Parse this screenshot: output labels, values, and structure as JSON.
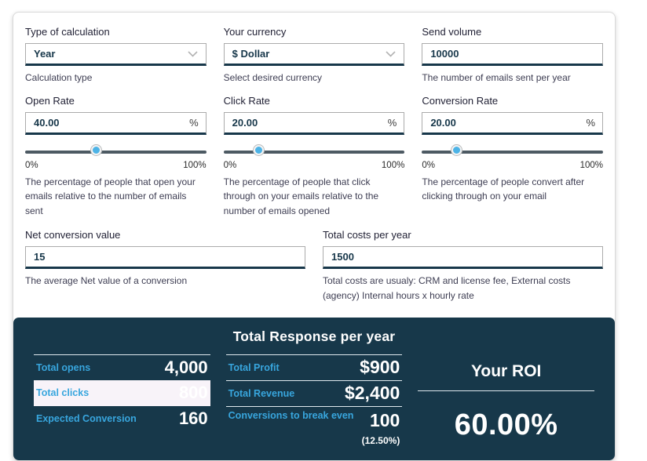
{
  "colors": {
    "panel_bg": "#17384a",
    "accent_cyan": "#38a6de",
    "slider_thumb": "#4db3e6",
    "highlight_row_bg": "#f8f3f9",
    "input_border_bottom": "#17374a"
  },
  "form": {
    "fields": [
      {
        "label": "Type of calculation",
        "value": "Year",
        "help": "Calculation type"
      },
      {
        "label": "Your currency",
        "value": "$ Dollar",
        "help": "Select desired currency"
      },
      {
        "label": "Send volume",
        "value": "10000",
        "help": "The number of emails sent per year"
      }
    ],
    "sliders": [
      {
        "label": "Open Rate",
        "value": "40.00",
        "suffix": "%",
        "percent": 40,
        "min_label": "0%",
        "max_label": "100%",
        "help": "The percentage of people that open your emails relative to the number of emails sent"
      },
      {
        "label": "Click Rate",
        "value": "20.00",
        "suffix": "%",
        "percent": 20,
        "min_label": "0%",
        "max_label": "100%",
        "help": "The percentage of people that click through on your emails relative to the number of emails opened"
      },
      {
        "label": "Conversion Rate",
        "value": "20.00",
        "suffix": "%",
        "percent": 20,
        "min_label": "0%",
        "max_label": "100%",
        "help": "The percentage of people convert after clicking through on your email"
      }
    ],
    "bottom_fields": [
      {
        "label": "Net conversion value",
        "value": "15",
        "help": "The average Net value of a conversion"
      },
      {
        "label": "Total costs per year",
        "value": "1500",
        "help": "Total costs are usualy: CRM and license fee, External costs (agency) Internal hours x hourly rate"
      }
    ]
  },
  "results": {
    "title": "Total Response per year",
    "left_rows": [
      {
        "label": "Total opens",
        "value": "4,000",
        "highlighted": false
      },
      {
        "label": "Total clicks",
        "value": "800",
        "highlighted": true
      },
      {
        "label": "Expected Conversion",
        "value": "160",
        "highlighted": false
      }
    ],
    "middle_rows": [
      {
        "label": "Total Profit",
        "value": "$900"
      },
      {
        "label": "Total Revenue",
        "value": "$2,400"
      },
      {
        "label": "Conversions to break even",
        "value": "100",
        "subvalue": "(12.50%)"
      }
    ],
    "roi": {
      "label": "Your ROI",
      "value": "60.00%"
    }
  }
}
